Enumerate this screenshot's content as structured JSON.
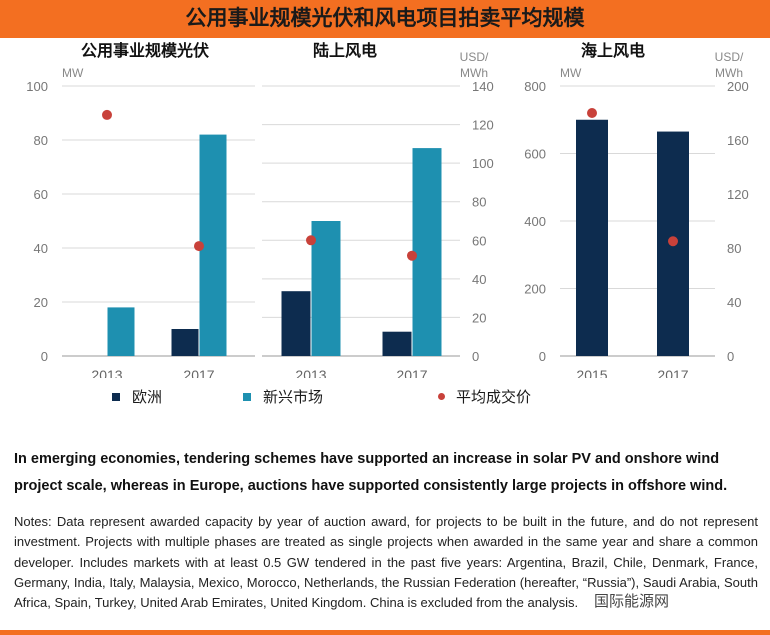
{
  "title": "公用事业规模光伏和风电项目拍卖平均规模",
  "colors": {
    "europe": "#0d2c4f",
    "emerging": "#1e90b0",
    "price": "#c8413a",
    "accent": "#f36f21"
  },
  "legend": {
    "europe": "欧洲",
    "emerging": "新兴市场",
    "price": "平均成交价"
  },
  "chart_data": [
    {
      "type": "bar",
      "title": "公用事业规模光伏",
      "ylabel": "MW",
      "y2label": "USD/MWh",
      "categories": [
        "2013",
        "2017"
      ],
      "ylim": [
        0,
        100
      ],
      "yticks": [
        0,
        20,
        40,
        60,
        80,
        100
      ],
      "y2lim": [
        0,
        140
      ],
      "series": [
        {
          "name": "欧洲",
          "values": [
            0,
            10
          ]
        },
        {
          "name": "新兴市场",
          "values": [
            18,
            82
          ]
        }
      ],
      "price": {
        "name": "平均成交价",
        "axis": "y2",
        "values": [
          125,
          57
        ]
      }
    },
    {
      "type": "bar",
      "title": "陆上风电",
      "ylabel": "MW",
      "y2label": "USD/MWh",
      "categories": [
        "2013",
        "2017"
      ],
      "ylim": [
        0,
        100
      ],
      "y2lim": [
        0,
        140
      ],
      "y2ticks": [
        0,
        20,
        40,
        60,
        80,
        100,
        120,
        140
      ],
      "series": [
        {
          "name": "欧洲",
          "values": [
            24,
            9
          ]
        },
        {
          "name": "新兴市场",
          "values": [
            50,
            77
          ]
        }
      ],
      "price": {
        "name": "平均成交价",
        "axis": "y2",
        "values": [
          60,
          52
        ]
      }
    },
    {
      "type": "bar",
      "title": "海上风电",
      "ylabel": "MW",
      "y2label": "USD/MWh",
      "categories": [
        "2015",
        "2017"
      ],
      "ylim": [
        0,
        800
      ],
      "yticks": [
        0,
        200,
        400,
        600,
        800
      ],
      "y2lim": [
        0,
        200
      ],
      "y2ticks": [
        0,
        40,
        80,
        120,
        160,
        200
      ],
      "series": [
        {
          "name": "欧洲",
          "values": [
            700,
            665
          ]
        }
      ],
      "price": {
        "name": "平均成交价",
        "axis": "y2",
        "values": [
          180,
          85
        ]
      }
    }
  ],
  "summary": "In emerging economies, tendering schemes have supported an increase in solar PV and onshore wind project scale, whereas in Europe, auctions have supported consistently large projects in offshore wind.",
  "notes": "Notes: Data represent awarded capacity by year of auction award, for projects to be built in the future, and do not represent investment. Projects with multiple phases are treated as single projects when awarded in the same year and share a common developer. Includes markets with at least 0.5 GW tendered in the past five years: Argentina, Brazil, Chile, Denmark, France, Germany, India, Italy, Malaysia, Mexico, Morocco, Netherlands, the Russian Federation (hereafter, “Russia”), Saudi Arabia, South Africa, Spain, Turkey, United Arab Emirates, United Kingdom. China is excluded from the analysis.",
  "watermark": "国际能源网"
}
